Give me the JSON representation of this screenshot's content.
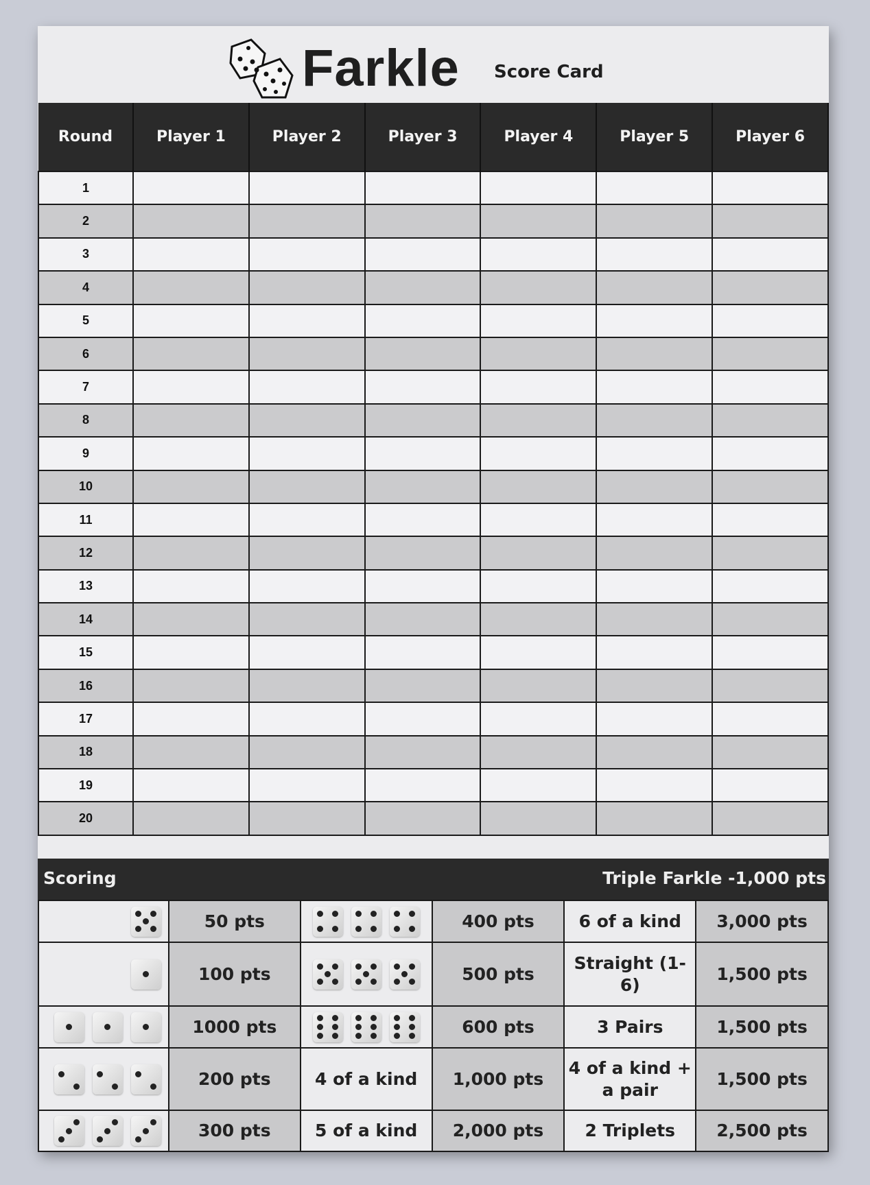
{
  "header": {
    "title": "Farkle",
    "subtitle": "Score Card",
    "logo_icon": "two-dice-icon"
  },
  "table": {
    "columns": [
      "Round",
      "Player 1",
      "Player 2",
      "Player 3",
      "Player 4",
      "Player 5",
      "Player 6"
    ],
    "rounds": [
      "1",
      "2",
      "3",
      "4",
      "5",
      "6",
      "7",
      "8",
      "9",
      "10",
      "11",
      "12",
      "13",
      "14",
      "15",
      "16",
      "17",
      "18",
      "19",
      "20"
    ]
  },
  "scoring": {
    "title": "Scoring",
    "note": "Triple Farkle -1,000 pts",
    "rows": [
      {
        "dice1": [
          5
        ],
        "pts1": "50 pts",
        "dice2": [
          4,
          4,
          4
        ],
        "pts2": "400 pts",
        "combo": "6 of a kind",
        "pts3": "3,000 pts"
      },
      {
        "dice1": [
          1
        ],
        "pts1": "100 pts",
        "dice2": [
          5,
          5,
          5
        ],
        "pts2": "500 pts",
        "combo": "Straight (1-6)",
        "pts3": "1,500 pts"
      },
      {
        "dice1": [
          1,
          1,
          1
        ],
        "pts1": "1000 pts",
        "dice2": [
          6,
          6,
          6
        ],
        "pts2": "600 pts",
        "combo": "3 Pairs",
        "pts3": "1,500 pts"
      },
      {
        "dice1": [
          2,
          2,
          2
        ],
        "pts1": "200 pts",
        "label2": "4 of a kind",
        "pts2": "1,000 pts",
        "combo": "4 of a kind + a pair",
        "pts3": "1,500 pts"
      },
      {
        "dice1": [
          3,
          3,
          3
        ],
        "pts1": "300 pts",
        "label2": "5 of a kind",
        "pts2": "2,000 pts",
        "combo": "2 Triplets",
        "pts3": "2,500 pts"
      }
    ]
  }
}
